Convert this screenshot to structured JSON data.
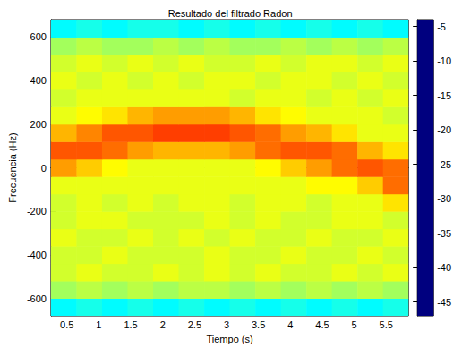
{
  "chart_data": {
    "type": "heatmap",
    "title": "Resultado del filtrado Radon",
    "x_label": "Tiempo (s)",
    "y_label": "Frecuencia (Hz)",
    "x": [
      0.45,
      0.85,
      1.25,
      1.65,
      2.05,
      2.45,
      2.85,
      3.25,
      3.65,
      4.05,
      4.45,
      4.85,
      5.25,
      5.65
    ],
    "y": [
      -640,
      -560,
      -480,
      -400,
      -320,
      -240,
      -160,
      -80,
      0,
      80,
      160,
      240,
      320,
      400,
      480,
      560,
      640
    ],
    "values": [
      [
        -31,
        -30,
        -31,
        -30,
        -31,
        -30,
        -31,
        -30,
        -31,
        -30,
        -31,
        -30,
        -31,
        -30
      ],
      [
        -24,
        -23,
        -24,
        -23,
        -24,
        -23,
        -23,
        -24,
        -23,
        -24,
        -23,
        -24,
        -23,
        -24
      ],
      [
        -22,
        -21,
        -22,
        -22,
        -21,
        -22,
        -21,
        -22,
        -21,
        -22,
        -22,
        -21,
        -22,
        -21
      ],
      [
        -22,
        -22,
        -21,
        -22,
        -22,
        -22,
        -21,
        -22,
        -22,
        -21,
        -22,
        -22,
        -21,
        -22
      ],
      [
        -21,
        -22,
        -22,
        -21,
        -22,
        -21,
        -22,
        -21,
        -22,
        -22,
        -21,
        -22,
        -22,
        -21
      ],
      [
        -22,
        -21,
        -21,
        -22,
        -22,
        -22,
        -21,
        -22,
        -21,
        -22,
        -22,
        -21,
        -21,
        -22
      ],
      [
        -22,
        -21,
        -22,
        -21,
        -22,
        -21,
        -21,
        -22,
        -21,
        -21,
        -22,
        -21,
        -21,
        -19
      ],
      [
        -21,
        -21,
        -21,
        -21,
        -21,
        -21,
        -21,
        -21,
        -21,
        -21,
        -20,
        -20,
        -18,
        -14
      ],
      [
        -16,
        -18,
        -20,
        -21,
        -21,
        -21,
        -21,
        -21,
        -20,
        -18,
        -16,
        -14,
        -13,
        -14
      ],
      [
        -13,
        -13,
        -14,
        -16,
        -17,
        -17,
        -17,
        -16,
        -14,
        -13,
        -13,
        -14,
        -17,
        -19
      ],
      [
        -17,
        -15,
        -13,
        -13,
        -12,
        -12,
        -12,
        -13,
        -14,
        -16,
        -17,
        -19,
        -21,
        -21
      ],
      [
        -21,
        -20,
        -19,
        -17,
        -16,
        -16,
        -16,
        -17,
        -19,
        -20,
        -21,
        -21,
        -21,
        -22
      ],
      [
        -22,
        -21,
        -21,
        -21,
        -21,
        -21,
        -21,
        -22,
        -21,
        -21,
        -22,
        -21,
        -22,
        -21
      ],
      [
        -21,
        -22,
        -21,
        -22,
        -21,
        -22,
        -21,
        -21,
        -22,
        -21,
        -21,
        -22,
        -21,
        -22
      ],
      [
        -22,
        -21,
        -22,
        -21,
        -22,
        -21,
        -22,
        -22,
        -21,
        -22,
        -21,
        -21,
        -22,
        -21
      ],
      [
        -24,
        -23,
        -24,
        -24,
        -23,
        -24,
        -23,
        -24,
        -24,
        -23,
        -24,
        -23,
        -24,
        -23
      ],
      [
        -31,
        -30,
        -31,
        -30,
        -30,
        -31,
        -30,
        -31,
        -30,
        -31,
        -30,
        -31,
        -30,
        -31
      ]
    ],
    "xlim": [
      0.25,
      5.85
    ],
    "xticks": [
      0.5,
      1,
      1.5,
      2,
      2.5,
      3,
      3.5,
      4,
      4.5,
      5,
      5.5
    ],
    "ylim": [
      -680,
      680
    ],
    "yticks": [
      -600,
      -400,
      -200,
      0,
      200,
      400,
      600
    ],
    "colorbar_range": [
      -47,
      -4
    ],
    "colorbar_ticks": [
      -45,
      -40,
      -35,
      -30,
      -25,
      -20,
      -15,
      -10,
      -5
    ]
  }
}
